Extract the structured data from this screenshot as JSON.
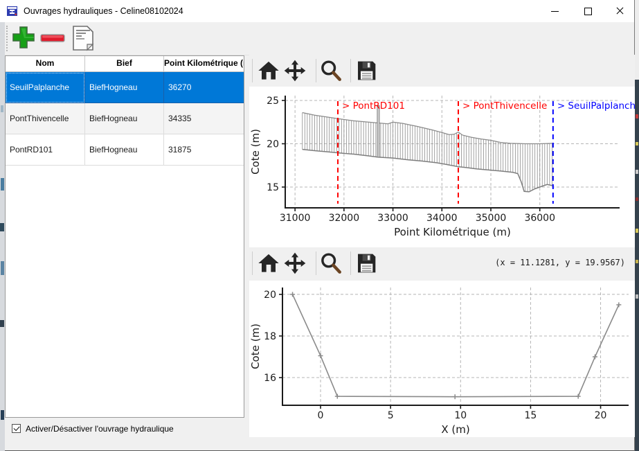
{
  "window": {
    "title": "Ouvrages hydrauliques - Celine08102024",
    "controls": [
      "minimize",
      "maximize",
      "close"
    ]
  },
  "toolbar": {
    "buttons": [
      {
        "name": "add",
        "icon": "plus-icon",
        "color": "#17a017"
      },
      {
        "name": "remove",
        "icon": "minus-icon",
        "color": "#e01b2c"
      },
      {
        "name": "edit",
        "icon": "document-icon",
        "color": "#ffffff"
      }
    ]
  },
  "table": {
    "columns": [
      "Nom",
      "Bief",
      "Point Kilométrique (m)"
    ],
    "rows": [
      {
        "nom": "SeuilPalplanche",
        "bief": "BiefHogneau",
        "pk": "36270",
        "selected": true
      },
      {
        "nom": "PontThivencelle",
        "bief": "BiefHogneau",
        "pk": "34335",
        "selected": false
      },
      {
        "nom": "PontRD101",
        "bief": "BiefHogneau",
        "pk": "31875",
        "selected": false
      }
    ],
    "selected_color": "#0078d7"
  },
  "footer": {
    "checkbox_label": "Activer/Désactiver l'ouvrage hydraulique",
    "checkbox_checked": true
  },
  "nav_toolbar": {
    "icons": [
      "home-icon",
      "pan-icon",
      "zoom-icon",
      "save-icon"
    ],
    "coords_readout": "(x = 11.1281,  y = 19.9567)"
  },
  "chart_data": [
    {
      "type": "line",
      "name": "profil-en-long",
      "xlabel": "Point Kilométrique (m)",
      "ylabel": "Cote (m)",
      "xlim": [
        30800,
        37630
      ],
      "ylim": [
        12.6,
        25.56
      ],
      "xticks": [
        31000,
        32000,
        33000,
        34000,
        35000,
        36000
      ],
      "yticks": [
        15,
        20,
        25
      ],
      "grid": true,
      "line_color": "#8a8a8a",
      "annotations": [
        {
          "label": "> PontRD101",
          "x": 31875,
          "color": "#ff0000"
        },
        {
          "label": "> PontThivencelle",
          "x": 34335,
          "color": "#ff0000"
        },
        {
          "label": "> SeuilPalplanche",
          "x": 36270,
          "color": "#0000ff"
        }
      ],
      "spike": {
        "x1": 32680,
        "x2": 32722,
        "top": 24.4
      },
      "hatch_step": 50,
      "top_profile": [
        [
          31150,
          23.6
        ],
        [
          31400,
          23.3
        ],
        [
          31700,
          23.05
        ],
        [
          31875,
          22.9
        ],
        [
          32200,
          22.65
        ],
        [
          32500,
          22.5
        ],
        [
          32700,
          22.4
        ],
        [
          32900,
          22.3
        ],
        [
          33000,
          22.5
        ],
        [
          33200,
          22.35
        ],
        [
          33500,
          22.0
        ],
        [
          33800,
          21.6
        ],
        [
          34000,
          21.3
        ],
        [
          34150,
          21.05
        ],
        [
          34250,
          21.1
        ],
        [
          34335,
          21.35
        ],
        [
          34420,
          21.0
        ],
        [
          34600,
          20.75
        ],
        [
          34800,
          20.55
        ],
        [
          35000,
          20.4
        ],
        [
          35200,
          20.15
        ],
        [
          35400,
          20.05
        ],
        [
          35700,
          20.0
        ],
        [
          36000,
          20.0
        ],
        [
          36270,
          20.05
        ]
      ],
      "bottom_profile": [
        [
          31150,
          19.35
        ],
        [
          31400,
          19.2
        ],
        [
          31700,
          19.05
        ],
        [
          31875,
          18.95
        ],
        [
          32200,
          18.8
        ],
        [
          32500,
          18.6
        ],
        [
          32700,
          18.45
        ],
        [
          33000,
          18.35
        ],
        [
          33300,
          18.15
        ],
        [
          33600,
          18.0
        ],
        [
          33900,
          17.8
        ],
        [
          34100,
          17.6
        ],
        [
          34335,
          17.35
        ],
        [
          34500,
          17.25
        ],
        [
          34700,
          17.1
        ],
        [
          35000,
          16.95
        ],
        [
          35200,
          16.85
        ],
        [
          35450,
          16.7
        ],
        [
          35550,
          16.55
        ],
        [
          35620,
          15.6
        ],
        [
          35680,
          14.5
        ],
        [
          35780,
          14.45
        ],
        [
          35900,
          14.8
        ],
        [
          36050,
          15.1
        ],
        [
          36150,
          15.3
        ],
        [
          36270,
          15.15
        ]
      ]
    },
    {
      "type": "line",
      "name": "profil-en-travers",
      "xlabel": "X (m)",
      "ylabel": "Cote (m)",
      "xlim": [
        -2.72,
        22.0
      ],
      "ylim": [
        14.67,
        20.33
      ],
      "xticks": [
        0,
        5,
        10,
        15,
        20
      ],
      "yticks": [
        16,
        18,
        20
      ],
      "grid": true,
      "line_color": "#8a8a8a",
      "marker": "+",
      "points": [
        [
          -2.0,
          20.0
        ],
        [
          0.0,
          17.05
        ],
        [
          1.2,
          15.1
        ],
        [
          9.6,
          15.08
        ],
        [
          18.4,
          15.1
        ],
        [
          19.6,
          17.0
        ],
        [
          21.3,
          19.5
        ]
      ]
    }
  ]
}
